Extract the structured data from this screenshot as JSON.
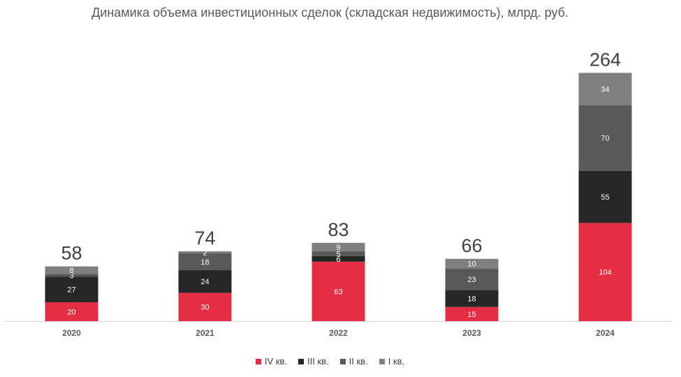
{
  "chart_data": {
    "type": "bar",
    "stacked": true,
    "title": "Динамика объема инвестиционных сделок (складская недвижимость), млрд. руб.",
    "categories": [
      "2020",
      "2021",
      "2022",
      "2023",
      "2024"
    ],
    "series": [
      {
        "name": "IV кв.",
        "values": [
          20,
          30,
          63,
          15,
          104
        ],
        "color": "#e42e43"
      },
      {
        "name": "III кв.",
        "values": [
          27,
          24,
          6,
          18,
          55
        ],
        "color": "#262626"
      },
      {
        "name": "II кв.",
        "values": [
          3,
          18,
          5,
          23,
          70
        ],
        "color": "#595959"
      },
      {
        "name": "I кв.",
        "values": [
          8,
          2,
          9,
          10,
          34
        ],
        "color": "#7f7f7f"
      }
    ],
    "totals": [
      58,
      74,
      83,
      66,
      264
    ],
    "ylim": [
      0,
      264
    ],
    "grid": false,
    "legend_position": "bottom"
  }
}
